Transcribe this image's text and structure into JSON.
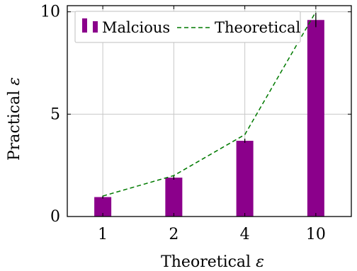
{
  "chart_data": {
    "type": "bar",
    "xlabel": "Theoretical",
    "xlabel_symbol": "ε",
    "ylabel": "Practical",
    "ylabel_symbol": "ε",
    "categories": [
      "1",
      "2",
      "4",
      "10"
    ],
    "ylim": [
      0,
      10.3
    ],
    "yticks": [
      0,
      5,
      10
    ],
    "grid": true,
    "legend_position": "top-left",
    "series": [
      {
        "name": "Malcious",
        "type": "bar",
        "color": "#8b008b",
        "values": [
          0.95,
          1.9,
          3.7,
          9.6
        ],
        "error": [
          0.07,
          0.1,
          0.1,
          0.35
        ]
      },
      {
        "name": "Theoretical",
        "type": "line",
        "style": "dashed",
        "color": "#007a00",
        "values": [
          1.0,
          2.0,
          4.0,
          10.0
        ]
      }
    ]
  }
}
